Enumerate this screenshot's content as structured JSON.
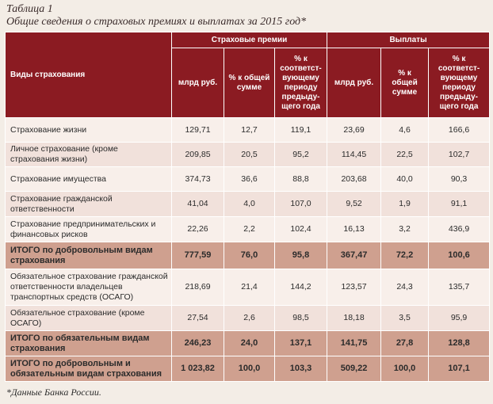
{
  "caption": {
    "line1": "Таблица 1",
    "line2": "Общие сведения о страховых премиях и выплатах за 2015 год*"
  },
  "header": {
    "kind": "Виды страхования",
    "group_premiums": "Страховые премии",
    "group_payments": "Выплаты",
    "col_bln": "млрд руб.",
    "col_share": "% к общей сумме",
    "col_share_pay": "% к общей сумме",
    "col_prev": "% к соответст-вующему периоду предыду-щего года"
  },
  "rows": [
    {
      "name": "Страхование жизни",
      "v": [
        "129,71",
        "12,7",
        "119,1",
        "23,69",
        "4,6",
        "166,6"
      ],
      "total": false
    },
    {
      "name": "Личное страхование (кроме страхования жизни)",
      "v": [
        "209,85",
        "20,5",
        "95,2",
        "114,45",
        "22,5",
        "102,7"
      ],
      "total": false
    },
    {
      "name": "Страхование имущества",
      "v": [
        "374,73",
        "36,6",
        "88,8",
        "203,68",
        "40,0",
        "90,3"
      ],
      "total": false
    },
    {
      "name": "Страхование гражданской ответственности",
      "v": [
        "41,04",
        "4,0",
        "107,0",
        "9,52",
        "1,9",
        "91,1"
      ],
      "total": false
    },
    {
      "name": "Страхование предпринимательских и финансовых рисков",
      "v": [
        "22,26",
        "2,2",
        "102,4",
        "16,13",
        "3,2",
        "436,9"
      ],
      "total": false
    },
    {
      "name": "ИТОГО по добровольным видам страхования",
      "v": [
        "777,59",
        "76,0",
        "95,8",
        "367,47",
        "72,2",
        "100,6"
      ],
      "total": true
    },
    {
      "name": "Обязательное страхование гражданской ответственности владельцев транспортных средств (ОСАГО)",
      "v": [
        "218,69",
        "21,4",
        "144,2",
        "123,57",
        "24,3",
        "135,7"
      ],
      "total": false
    },
    {
      "name": "Обязательное страхование (кроме ОСАГО)",
      "v": [
        "27,54",
        "2,6",
        "98,5",
        "18,18",
        "3,5",
        "95,9"
      ],
      "total": false
    },
    {
      "name": "ИТОГО по обязательным видам страхования",
      "v": [
        "246,23",
        "24,0",
        "137,1",
        "141,75",
        "27,8",
        "128,8"
      ],
      "total": true
    },
    {
      "name": "ИТОГО по добровольным и обязательным видам страхования",
      "v": [
        "1 023,82",
        "100,0",
        "103,3",
        "509,22",
        "100,0",
        "107,1"
      ],
      "total": true
    }
  ],
  "footnote": "*Данные Банка России."
}
